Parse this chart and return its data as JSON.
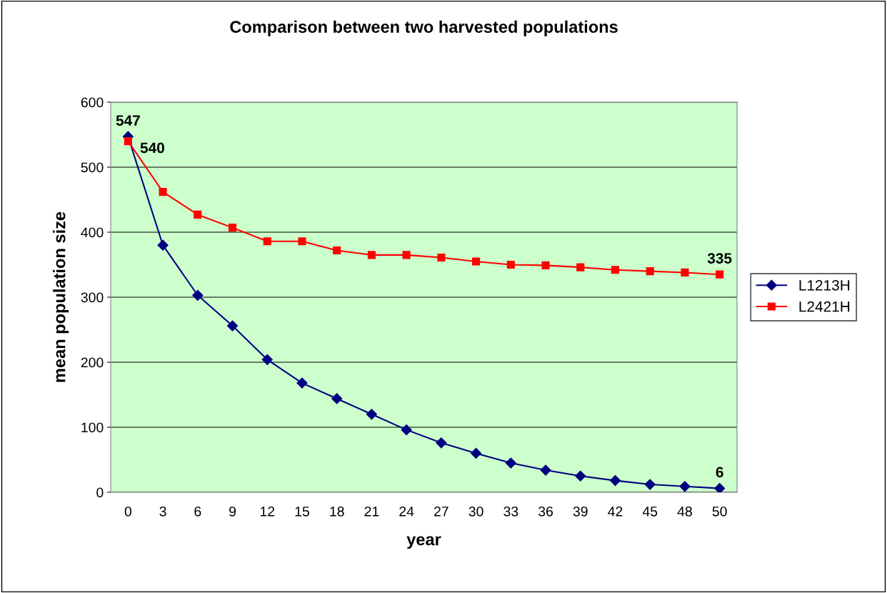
{
  "chart_data": {
    "type": "line",
    "title": "Comparison between two harvested populations",
    "xlabel": "year",
    "ylabel": "mean population size",
    "categories": [
      "0",
      "3",
      "6",
      "9",
      "12",
      "15",
      "18",
      "21",
      "24",
      "27",
      "30",
      "33",
      "36",
      "39",
      "42",
      "45",
      "48",
      "50"
    ],
    "series": [
      {
        "name": "L1213H",
        "color": "#000080",
        "marker": "diamond",
        "values": [
          547,
          380,
          303,
          256,
          204,
          168,
          144,
          120,
          96,
          76,
          60,
          45,
          34,
          25,
          18,
          12,
          9,
          6
        ],
        "value_labels": [
          "547",
          null,
          null,
          null,
          null,
          null,
          null,
          null,
          null,
          null,
          null,
          null,
          null,
          null,
          null,
          null,
          null,
          "6"
        ]
      },
      {
        "name": "L2421H",
        "color": "#ff0000",
        "marker": "square",
        "values": [
          540,
          462,
          427,
          407,
          386,
          386,
          372,
          365,
          365,
          361,
          355,
          350,
          349,
          346,
          342,
          340,
          338,
          335
        ],
        "value_labels": [
          "540",
          null,
          null,
          null,
          null,
          null,
          null,
          null,
          null,
          null,
          null,
          null,
          null,
          null,
          null,
          null,
          null,
          "335"
        ]
      }
    ],
    "ylim": [
      0,
      600
    ],
    "yticks": [
      0,
      100,
      200,
      300,
      400,
      500,
      600
    ],
    "grid": "y",
    "legend": "right"
  }
}
